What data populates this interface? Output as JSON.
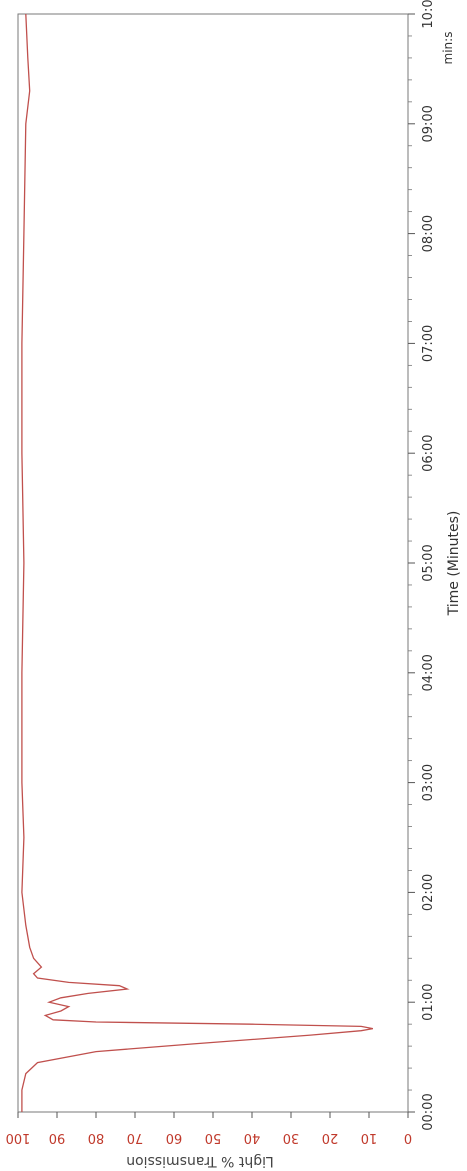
{
  "chart_data": {
    "type": "line",
    "title": "",
    "xlabel": "Time (Minutes)",
    "xunit": "min:s",
    "ylabel": "Light % Transmission",
    "xlim": [
      0,
      10
    ],
    "ylim": [
      0,
      100
    ],
    "x_ticks": [
      "00:00",
      "01:00",
      "02:00",
      "03:00",
      "04:00",
      "05:00",
      "06:00",
      "07:00",
      "08:00",
      "09:00",
      "10:0"
    ],
    "y_ticks": [
      "0",
      "10",
      "20",
      "30",
      "40",
      "50",
      "60",
      "70",
      "80",
      "90",
      "100"
    ],
    "grid": false,
    "colors": {
      "line": "#c0504d",
      "axis": "#7a7a7a",
      "tick_red": "#c0392b"
    },
    "series": [
      {
        "values": [
          [
            0.0,
            99
          ],
          [
            0.2,
            99
          ],
          [
            0.35,
            98
          ],
          [
            0.45,
            95
          ],
          [
            0.55,
            80
          ],
          [
            0.62,
            55
          ],
          [
            0.7,
            25
          ],
          [
            0.74,
            12
          ],
          [
            0.76,
            9
          ],
          [
            0.78,
            12
          ],
          [
            0.8,
            40
          ],
          [
            0.82,
            80
          ],
          [
            0.84,
            91
          ],
          [
            0.88,
            93
          ],
          [
            0.92,
            89
          ],
          [
            0.96,
            87
          ],
          [
            1.0,
            92
          ],
          [
            1.04,
            89
          ],
          [
            1.08,
            82
          ],
          [
            1.12,
            72
          ],
          [
            1.15,
            74
          ],
          [
            1.18,
            87
          ],
          [
            1.22,
            95
          ],
          [
            1.26,
            96
          ],
          [
            1.32,
            94
          ],
          [
            1.4,
            96
          ],
          [
            1.5,
            97
          ],
          [
            1.7,
            98
          ],
          [
            2.0,
            99
          ],
          [
            2.5,
            98.5
          ],
          [
            3.0,
            99
          ],
          [
            4.0,
            99
          ],
          [
            5.0,
            98.5
          ],
          [
            6.0,
            99
          ],
          [
            7.0,
            99
          ],
          [
            8.0,
            98.5
          ],
          [
            9.0,
            98
          ],
          [
            9.3,
            97
          ],
          [
            9.6,
            97.5
          ],
          [
            10.0,
            98
          ]
        ]
      }
    ]
  }
}
